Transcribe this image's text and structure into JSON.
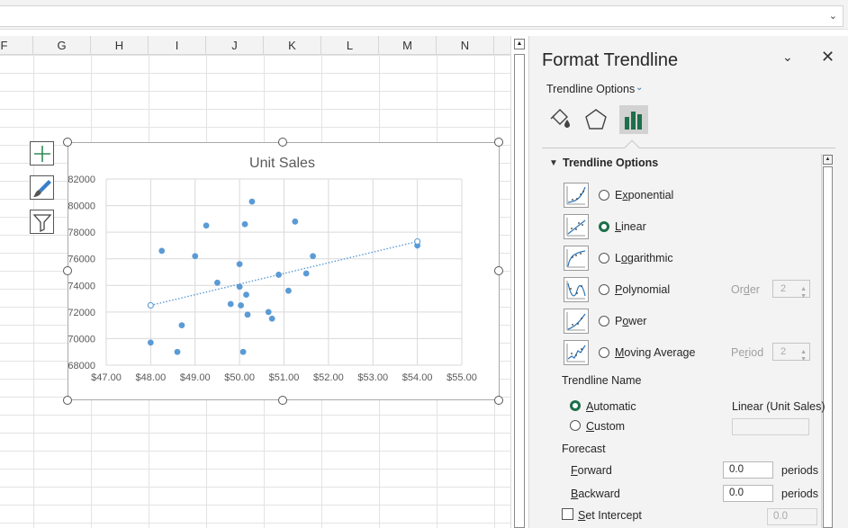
{
  "columns": [
    "F",
    "G",
    "H",
    "I",
    "J",
    "K",
    "L",
    "M",
    "N"
  ],
  "chart": {
    "title": "Unit Sales"
  },
  "chart_data": {
    "type": "scatter",
    "title": "Unit Sales",
    "xlabel": "",
    "ylabel": "",
    "xlim": [
      47,
      55
    ],
    "ylim": [
      68000,
      82000
    ],
    "x_ticks": [
      "$47.00",
      "$48.00",
      "$49.00",
      "$50.00",
      "$51.00",
      "$52.00",
      "$53.00",
      "$54.00",
      "$55.00"
    ],
    "y_ticks": [
      "68000",
      "70000",
      "72000",
      "74000",
      "76000",
      "78000",
      "80000",
      "82000"
    ],
    "grid": true,
    "series": [
      {
        "points": [
          [
            48.0,
            69700
          ],
          [
            48.25,
            76600
          ],
          [
            48.6,
            69000
          ],
          [
            48.7,
            71000
          ],
          [
            49.0,
            76200
          ],
          [
            49.25,
            78500
          ],
          [
            49.5,
            74200
          ],
          [
            49.8,
            72600
          ],
          [
            50.0,
            75600
          ],
          [
            50.0,
            73900
          ],
          [
            50.03,
            72500
          ],
          [
            50.08,
            69000
          ],
          [
            50.12,
            78600
          ],
          [
            50.15,
            73300
          ],
          [
            50.18,
            71800
          ],
          [
            50.28,
            80300
          ],
          [
            50.65,
            72000
          ],
          [
            50.73,
            71500
          ],
          [
            50.88,
            74800
          ],
          [
            51.1,
            73600
          ],
          [
            51.25,
            78800
          ],
          [
            51.5,
            74900
          ],
          [
            51.65,
            76200
          ],
          [
            54.0,
            77000
          ]
        ],
        "color": "#5b9bd5"
      }
    ],
    "trendline": {
      "type": "linear",
      "x": [
        48.0,
        54.0
      ],
      "y": [
        72500,
        77300
      ],
      "color": "#5b9bd5"
    }
  },
  "pane": {
    "title": "Format Trendline",
    "subtitle": "Trendline Options",
    "tab_icons": [
      "fill-line-icon",
      "effects-icon",
      "trendline-options-icon"
    ],
    "section_title": "Trendline Options",
    "options": [
      {
        "label": "Exponential",
        "selected": false
      },
      {
        "label": "Linear",
        "selected": true
      },
      {
        "label": "Logarithmic",
        "selected": false
      },
      {
        "label": "Polynomial",
        "selected": false
      },
      {
        "label": "Power",
        "selected": false
      },
      {
        "label": "Moving Average",
        "selected": false
      }
    ],
    "order_label": "Order",
    "order_value": "2",
    "period_label": "Period",
    "period_value": "2",
    "name_heading": "Trendline Name",
    "automatic_label": "Automatic",
    "automatic_value": "Linear (Unit Sales)",
    "custom_label": "Custom",
    "forecast_heading": "Forecast",
    "forward_label": "Forward",
    "forward_value": "0.0",
    "backward_label": "Backward",
    "backward_value": "0.0",
    "periods_label": "periods",
    "intercept_label": "Set Intercept",
    "intercept_value": "0.0"
  }
}
